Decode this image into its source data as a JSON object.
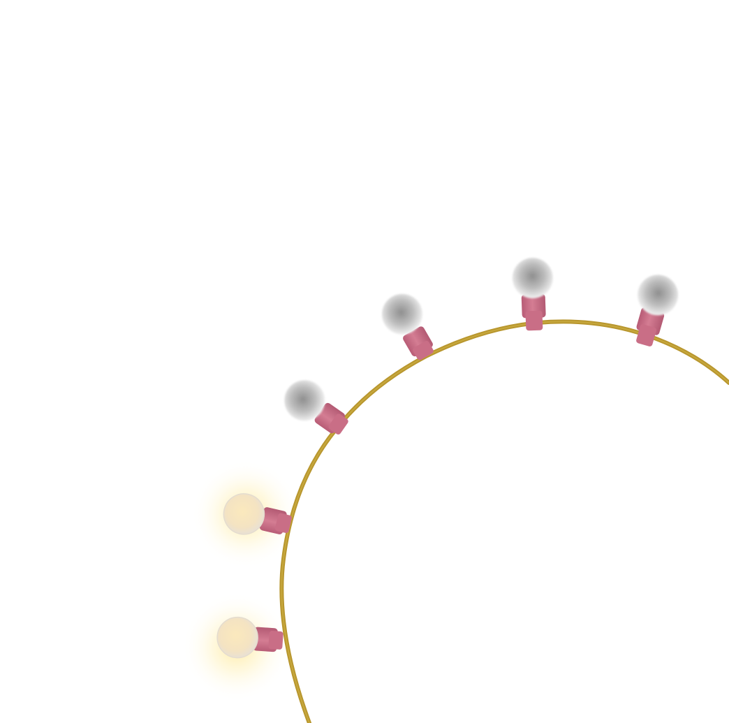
{
  "scene": {
    "background_color": "#ffffff",
    "wire_color": "#b8962e",
    "wire_highlight_color": "#d4b84a",
    "socket_color": "#c96e86",
    "socket_dark_color": "#a9556b",
    "bulb_off_color": "#bdbdbd",
    "bulb_on_color": "#f6e7c4",
    "glow_color": "#ffe58a",
    "bulbs": [
      {
        "name": "bulb-lit-lower",
        "state": "on",
        "icon": "light-bulb-icon"
      },
      {
        "name": "bulb-lit-upper",
        "state": "on",
        "icon": "light-bulb-icon"
      },
      {
        "name": "bulb-off-1",
        "state": "off",
        "icon": "light-bulb-icon"
      },
      {
        "name": "bulb-off-2",
        "state": "off",
        "icon": "light-bulb-icon"
      },
      {
        "name": "bulb-off-3",
        "state": "off",
        "icon": "light-bulb-icon"
      },
      {
        "name": "bulb-off-4",
        "state": "off",
        "icon": "light-bulb-icon"
      }
    ]
  }
}
